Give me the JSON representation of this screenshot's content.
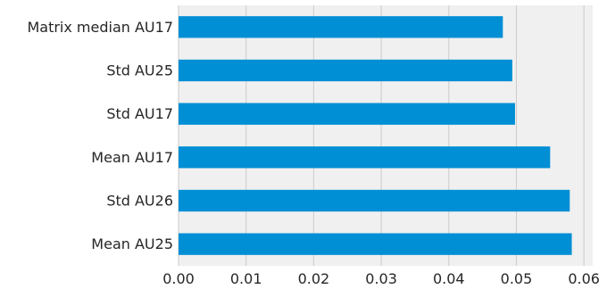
{
  "chart_data": {
    "type": "bar",
    "orientation": "horizontal",
    "categories": [
      "Mean AU25",
      "Std AU26",
      "Mean AU17",
      "Std AU17",
      "Std AU25",
      "Matrix median AU17"
    ],
    "values": [
      0.0582,
      0.0579,
      0.055,
      0.0498,
      0.0494,
      0.048
    ],
    "title": "",
    "xlabel": "",
    "ylabel": "",
    "xlim": [
      0,
      0.0613
    ],
    "xticks": [
      "0.00",
      "0.01",
      "0.02",
      "0.03",
      "0.04",
      "0.05",
      "0.06"
    ],
    "xtick_values": [
      0,
      0.01,
      0.02,
      0.03,
      0.04,
      0.05,
      0.06
    ],
    "grid": true,
    "legend": "none",
    "colors": {
      "bar": "#008fd5",
      "background": "#f0f0f0",
      "grid": "#cbcbcb",
      "text": "#262626"
    }
  }
}
